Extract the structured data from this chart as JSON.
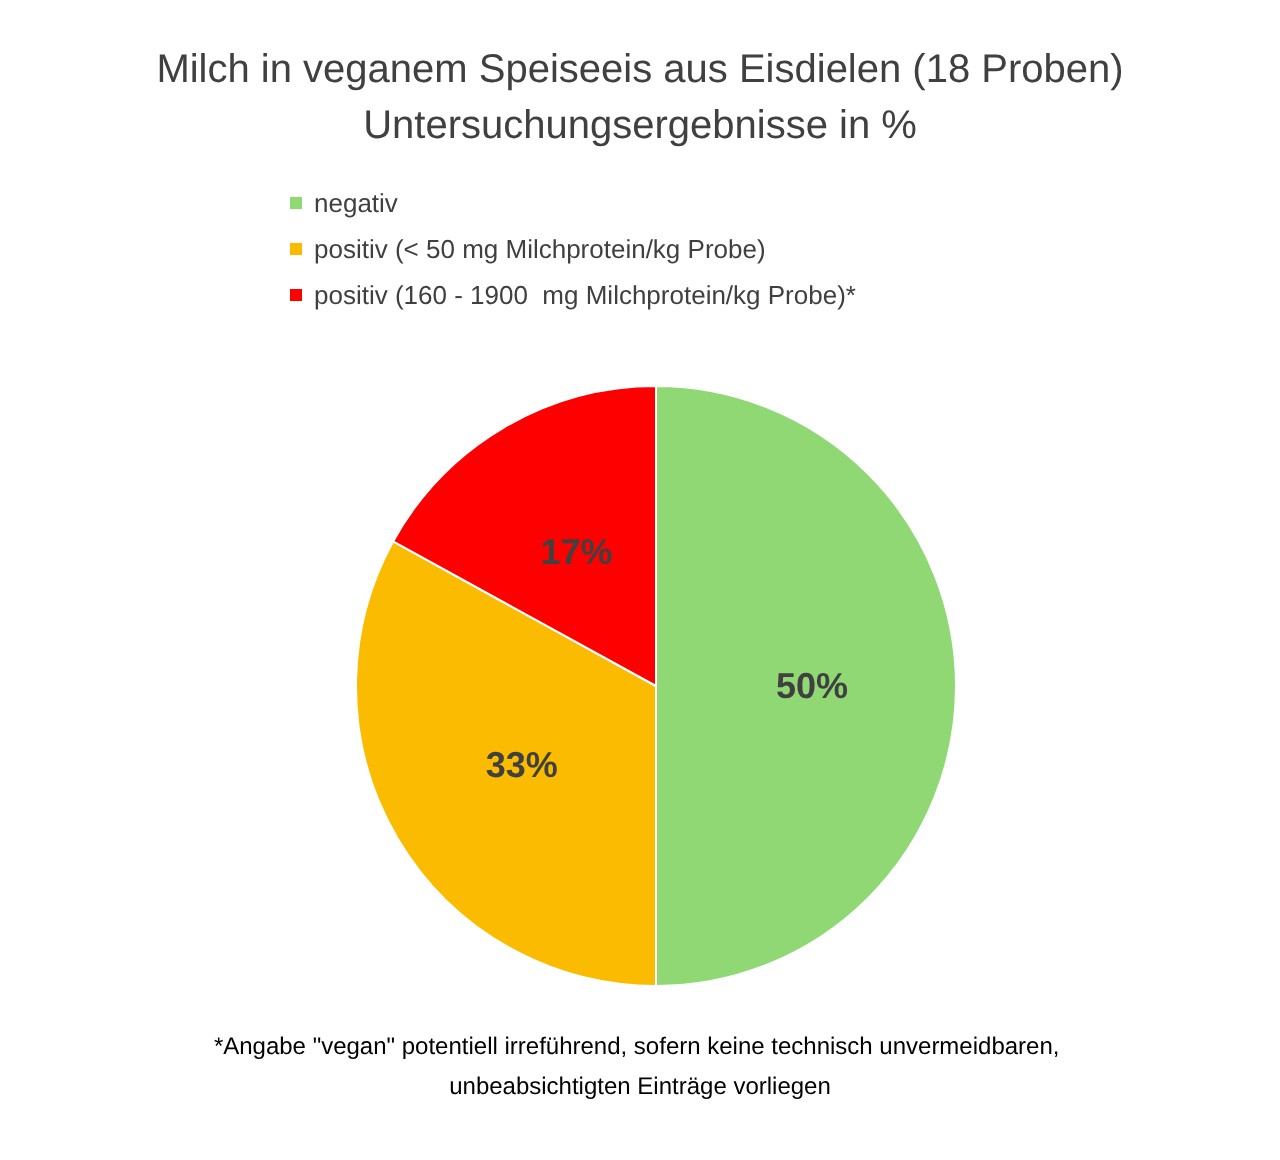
{
  "chart_data": {
    "type": "pie",
    "title": "Milch in veganem Speiseeis aus Eisdielen (18 Proben)",
    "subtitle": "Untersuchungsergebnisse in %",
    "categories": [
      "negativ",
      "positiv (< 50 mg Milchprotein/kg Probe)",
      "positiv (160 - 1900  mg Milchprotein/kg Probe)*"
    ],
    "values": [
      50,
      33,
      17
    ],
    "colors": [
      "#8fd874",
      "#fbbb00",
      "#ff0000"
    ],
    "value_labels": [
      "50%",
      "33%",
      "17%"
    ],
    "legend": "top",
    "annotations": [
      "*Angabe \"vegan\" potentiell irreführend, sofern keine technisch unvermeidbaren, unbeabsichtigten Einträge vorliegen"
    ]
  }
}
